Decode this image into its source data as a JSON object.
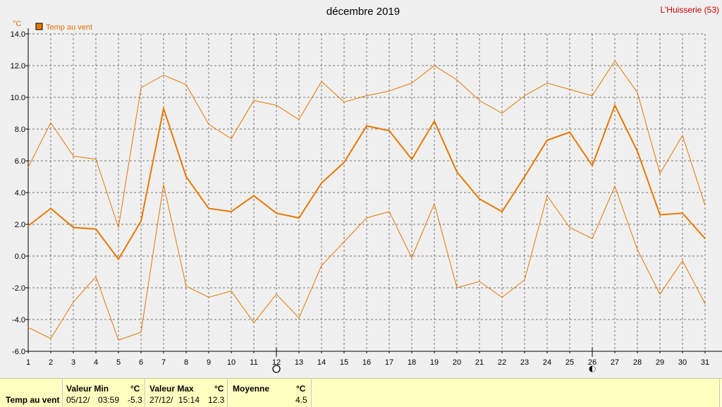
{
  "chart_data": {
    "type": "line",
    "title": "décembre 2019",
    "station": "L'Huisserie (53)",
    "unit": "°C",
    "legend": [
      "Temp au vent"
    ],
    "legend_placement": "top-left",
    "grid": true,
    "ylim": [
      -6,
      14
    ],
    "yticks": [
      "-6.0",
      "-4.0",
      "-2.0",
      "0.0",
      "2.0",
      "4.0",
      "6.0",
      "8.0",
      "10.0",
      "12.0",
      "14.0"
    ],
    "x": [
      1,
      2,
      3,
      4,
      5,
      6,
      7,
      8,
      9,
      10,
      11,
      12,
      13,
      14,
      15,
      16,
      17,
      18,
      19,
      20,
      21,
      22,
      23,
      24,
      25,
      26,
      27,
      28,
      29,
      30,
      31
    ],
    "xtick_labels": [
      "1",
      "2",
      "3",
      "4",
      "5",
      "6",
      "7",
      "8",
      "9",
      "10",
      "11",
      "12",
      "13",
      "14",
      "15",
      "16",
      "17",
      "18",
      "19",
      "20",
      "21",
      "22",
      "23",
      "24",
      "25",
      "26",
      "27",
      "28",
      "29",
      "30",
      "31"
    ],
    "series": [
      {
        "name": "Temp au vent",
        "values": [
          1.9,
          3.0,
          1.8,
          1.7,
          -0.2,
          2.2,
          9.3,
          5.0,
          3.0,
          2.8,
          3.8,
          2.7,
          2.4,
          4.6,
          5.9,
          8.2,
          7.9,
          6.1,
          8.5,
          5.3,
          3.6,
          2.8,
          5.0,
          7.3,
          7.8,
          5.7,
          9.5,
          6.6,
          2.6,
          2.7,
          1.1
        ],
        "color": "#e87800"
      },
      {
        "values": [
          5.6,
          8.4,
          6.3,
          6.1,
          1.8,
          10.6,
          11.4,
          10.8,
          8.3,
          7.4,
          9.8,
          9.5,
          8.6,
          11.0,
          9.7,
          10.1,
          10.4,
          10.9,
          12.0,
          11.1,
          9.8,
          9.0,
          10.1,
          10.9,
          10.5,
          10.1,
          12.3,
          10.3,
          5.2,
          7.6,
          3.2
        ],
        "color": "#e87800"
      },
      {
        "values": [
          -4.5,
          -5.2,
          -2.9,
          -1.3,
          -5.3,
          -4.8,
          4.5,
          -1.9,
          -2.6,
          -2.2,
          -4.2,
          -2.4,
          -3.9,
          -0.6,
          0.9,
          2.4,
          2.8,
          -0.1,
          3.3,
          -2.0,
          -1.6,
          -2.6,
          -1.5,
          3.8,
          1.8,
          1.1,
          4.4,
          0.4,
          -2.4,
          -0.3,
          -3.0
        ],
        "color": "#e87800"
      }
    ],
    "moon_markers": [
      {
        "day": 12,
        "phase": "new-moon"
      },
      {
        "day": 26,
        "phase": "full-moon"
      }
    ]
  },
  "summary": {
    "row_label": "Temp au vent",
    "min_header": "Valeur Min",
    "min_unit": "°C",
    "min_date": "05/12/",
    "min_time": "03:59",
    "min_value": "-5.3",
    "max_header": "Valeur Max",
    "max_unit": "°C",
    "max_date": "27/12/",
    "max_time": "15:14",
    "max_value": "12.3",
    "avg_header": "Moyenne",
    "avg_unit": "°C",
    "avg_value": "4.5"
  }
}
